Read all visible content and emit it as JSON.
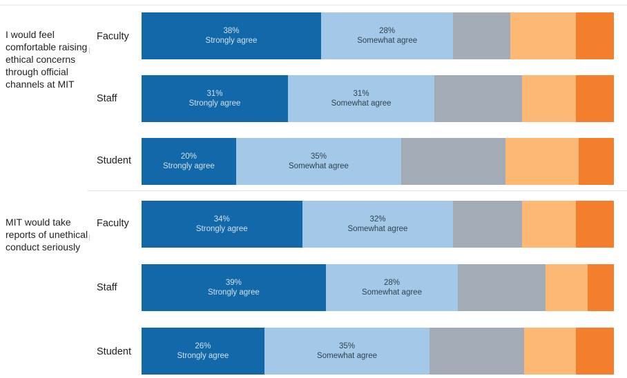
{
  "colors": {
    "strongly_agree": "#1368aa",
    "somewhat_agree": "#a4c9e8",
    "neutral": "#a3abb7",
    "somewhat_disagree": "#fdb974",
    "strongly_disagree": "#f37f2c",
    "dark_text": "#cfe0f0",
    "light_text": "#30424f"
  },
  "chart_data": {
    "type": "bar",
    "orientation": "horizontal",
    "stacked": true,
    "xlim": [
      0,
      100
    ],
    "legend": "none",
    "grid": false,
    "segment_order": [
      "strongly_agree",
      "somewhat_agree",
      "neutral",
      "somewhat_disagree",
      "strongly_disagree"
    ],
    "questions": [
      {
        "label": "I would feel comfortable raising ethical concerns through official channels at MIT",
        "groups": [
          {
            "name": "Faculty",
            "values": [
              38,
              28,
              12,
              14,
              8
            ],
            "labels": [
              {
                "pct": "38%",
                "text": "Strongly agree"
              },
              {
                "pct": "28%",
                "text": "Somewhat agree"
              }
            ]
          },
          {
            "name": "Staff",
            "values": [
              31,
              31,
              18.5,
              11.5,
              8
            ],
            "labels": [
              {
                "pct": "31%",
                "text": "Strongly agree"
              },
              {
                "pct": "31%",
                "text": "Somewhat agree"
              }
            ]
          },
          {
            "name": "Student",
            "values": [
              20,
              35,
              22,
              15.5,
              7.5
            ],
            "labels": [
              {
                "pct": "20%",
                "text": "Strongly agree"
              },
              {
                "pct": "35%",
                "text": "Somewhat agree"
              }
            ]
          }
        ]
      },
      {
        "label": "MIT would take reports of unethical conduct seriously",
        "groups": [
          {
            "name": "Faculty",
            "values": [
              34,
              32,
              14.5,
              11.5,
              8
            ],
            "labels": [
              {
                "pct": "34%",
                "text": "Strongly agree"
              },
              {
                "pct": "32%",
                "text": "Somewhat agree"
              }
            ]
          },
          {
            "name": "Staff",
            "values": [
              39,
              28,
              18.5,
              9,
              5.5
            ],
            "labels": [
              {
                "pct": "39%",
                "text": "Strongly agree"
              },
              {
                "pct": "28%",
                "text": "Somewhat agree"
              }
            ]
          },
          {
            "name": "Student",
            "values": [
              26,
              35,
              20,
              11,
              8
            ],
            "labels": [
              {
                "pct": "26%",
                "text": "Strongly agree"
              },
              {
                "pct": "35%",
                "text": "Somewhat agree"
              }
            ]
          }
        ]
      }
    ]
  }
}
